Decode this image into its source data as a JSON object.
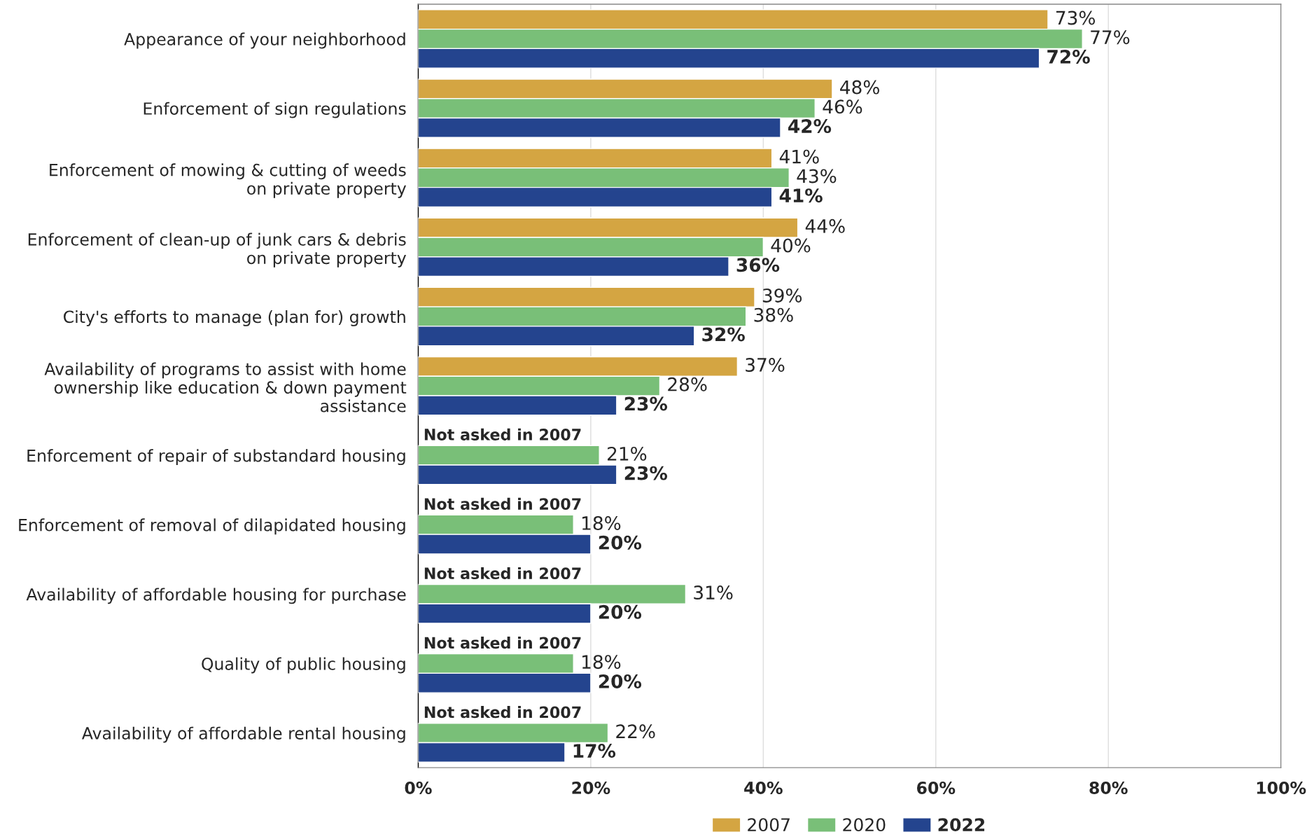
{
  "chart_data": {
    "type": "bar",
    "orientation": "horizontal",
    "categories": [
      "Appearance of your neighborhood",
      "Enforcement of sign regulations",
      "Enforcement of mowing & cutting of weeds\non private property",
      "Enforcement of clean-up of junk cars & debris\non private property",
      "City's efforts to manage (plan for) growth",
      "Availability of programs to assist with home\nownership like education & down payment\nassistance",
      "Enforcement of repair of substandard housing",
      "Enforcement of removal of dilapidated housing",
      "Availability of affordable housing for purchase",
      "Quality of public housing",
      "Availability of affordable rental housing"
    ],
    "series": [
      {
        "name": "2007",
        "color": "#d4a542",
        "values": [
          73,
          48,
          41,
          44,
          39,
          37,
          null,
          null,
          null,
          null,
          null
        ],
        "value_labels": [
          "73%",
          "48%",
          "41%",
          "44%",
          "39%",
          "37%",
          null,
          null,
          null,
          null,
          null
        ]
      },
      {
        "name": "2020",
        "color": "#79bf78",
        "values": [
          77,
          46,
          43,
          40,
          38,
          28,
          21,
          18,
          31,
          18,
          22
        ],
        "value_labels": [
          "77%",
          "46%",
          "43%",
          "40%",
          "38%",
          "28%",
          "21%",
          "18%",
          "31%",
          "18%",
          "22%"
        ]
      },
      {
        "name": "2022",
        "color": "#24448e",
        "values": [
          72,
          42,
          41,
          36,
          32,
          23,
          23,
          20,
          20,
          20,
          17
        ],
        "value_labels": [
          "72%",
          "42%",
          "41%",
          "36%",
          "32%",
          "23%",
          "23%",
          "20%",
          "20%",
          "20%",
          "17%"
        ]
      }
    ],
    "xlim": [
      0,
      100
    ],
    "xticks": [
      {
        "value": 0,
        "label": "0%"
      },
      {
        "value": 20,
        "label": "20%"
      },
      {
        "value": 40,
        "label": "40%"
      },
      {
        "value": 60,
        "label": "60%"
      },
      {
        "value": 80,
        "label": "80%"
      },
      {
        "value": 100,
        "label": "100%"
      }
    ],
    "grid": "x",
    "legend": "bottom",
    "annotations": [
      "Not asked in 2007",
      "Not asked in 2007",
      "Not asked in 2007",
      "Not asked in 2007",
      "Not asked in 2007"
    ]
  }
}
